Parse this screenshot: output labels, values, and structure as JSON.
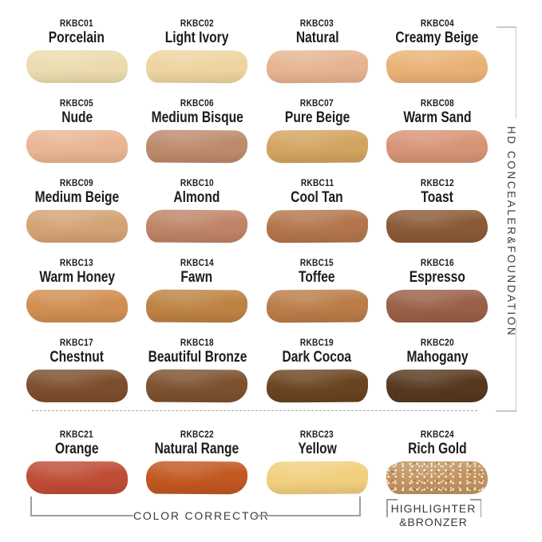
{
  "right_bracket": {
    "label": "HD CONCEALER&FOUNDATION"
  },
  "bottom_brackets": {
    "color_corrector": "COLOR CORRECTOR",
    "highlighter_line1": "HIGHLIGHTER",
    "highlighter_line2": "&BRONZER"
  },
  "colors": {
    "background": "#ffffff",
    "text": "#1c1c1c",
    "bracket_label_text": "#3a3a3a",
    "right_bracket_line": "#c9c9c9",
    "bottom_bracket_line": "#9e9e9e",
    "dashed_divider": "#ababab"
  },
  "shades": [
    {
      "code": "RKBC01",
      "name": "Porcelain",
      "color": "#ecdbae"
    },
    {
      "code": "RKBC02",
      "name": "Light Ivory",
      "color": "#eed4a0"
    },
    {
      "code": "RKBC03",
      "name": "Natural",
      "color": "#e6b491"
    },
    {
      "code": "RKBC04",
      "name": "Creamy Beige",
      "color": "#e9b275"
    },
    {
      "code": "RKBC05",
      "name": "Nude",
      "color": "#e9b592"
    },
    {
      "code": "RKBC06",
      "name": "Medium Bisque",
      "color": "#bd8a6c"
    },
    {
      "code": "RKBC07",
      "name": "Pure Beige",
      "color": "#d3a45f"
    },
    {
      "code": "RKBC08",
      "name": "Warm Sand",
      "color": "#d79476"
    },
    {
      "code": "RKBC09",
      "name": "Medium Beige",
      "color": "#d3a375"
    },
    {
      "code": "RKBC10",
      "name": "Almond",
      "color": "#bf8468"
    },
    {
      "code": "RKBC11",
      "name": "Cool Tan",
      "color": "#b3764c"
    },
    {
      "code": "RKBC12",
      "name": "Toast",
      "color": "#8a5a36"
    },
    {
      "code": "RKBC13",
      "name": "Warm Honey",
      "color": "#d08e52"
    },
    {
      "code": "RKBC14",
      "name": "Fawn",
      "color": "#bd8343"
    },
    {
      "code": "RKBC15",
      "name": "Toffee",
      "color": "#ba7c48"
    },
    {
      "code": "RKBC16",
      "name": "Espresso",
      "color": "#9a5f47"
    },
    {
      "code": "RKBC17",
      "name": "Chestnut",
      "color": "#7c4e2c"
    },
    {
      "code": "RKBC18",
      "name": "Beautiful Bronze",
      "color": "#7d512e"
    },
    {
      "code": "RKBC19",
      "name": "Dark Cocoa",
      "color": "#69441f"
    },
    {
      "code": "RKBC20",
      "name": "Mahogany",
      "color": "#56381e"
    },
    {
      "code": "RKBC21",
      "name": "Orange",
      "color": "#bf4c36"
    },
    {
      "code": "RKBC22",
      "name": "Natural Range",
      "color": "#c25720"
    },
    {
      "code": "RKBC23",
      "name": "Yellow",
      "color": "#f2cf7e"
    },
    {
      "code": "RKBC24",
      "name": "Rich Gold",
      "color": "#c29360"
    }
  ]
}
